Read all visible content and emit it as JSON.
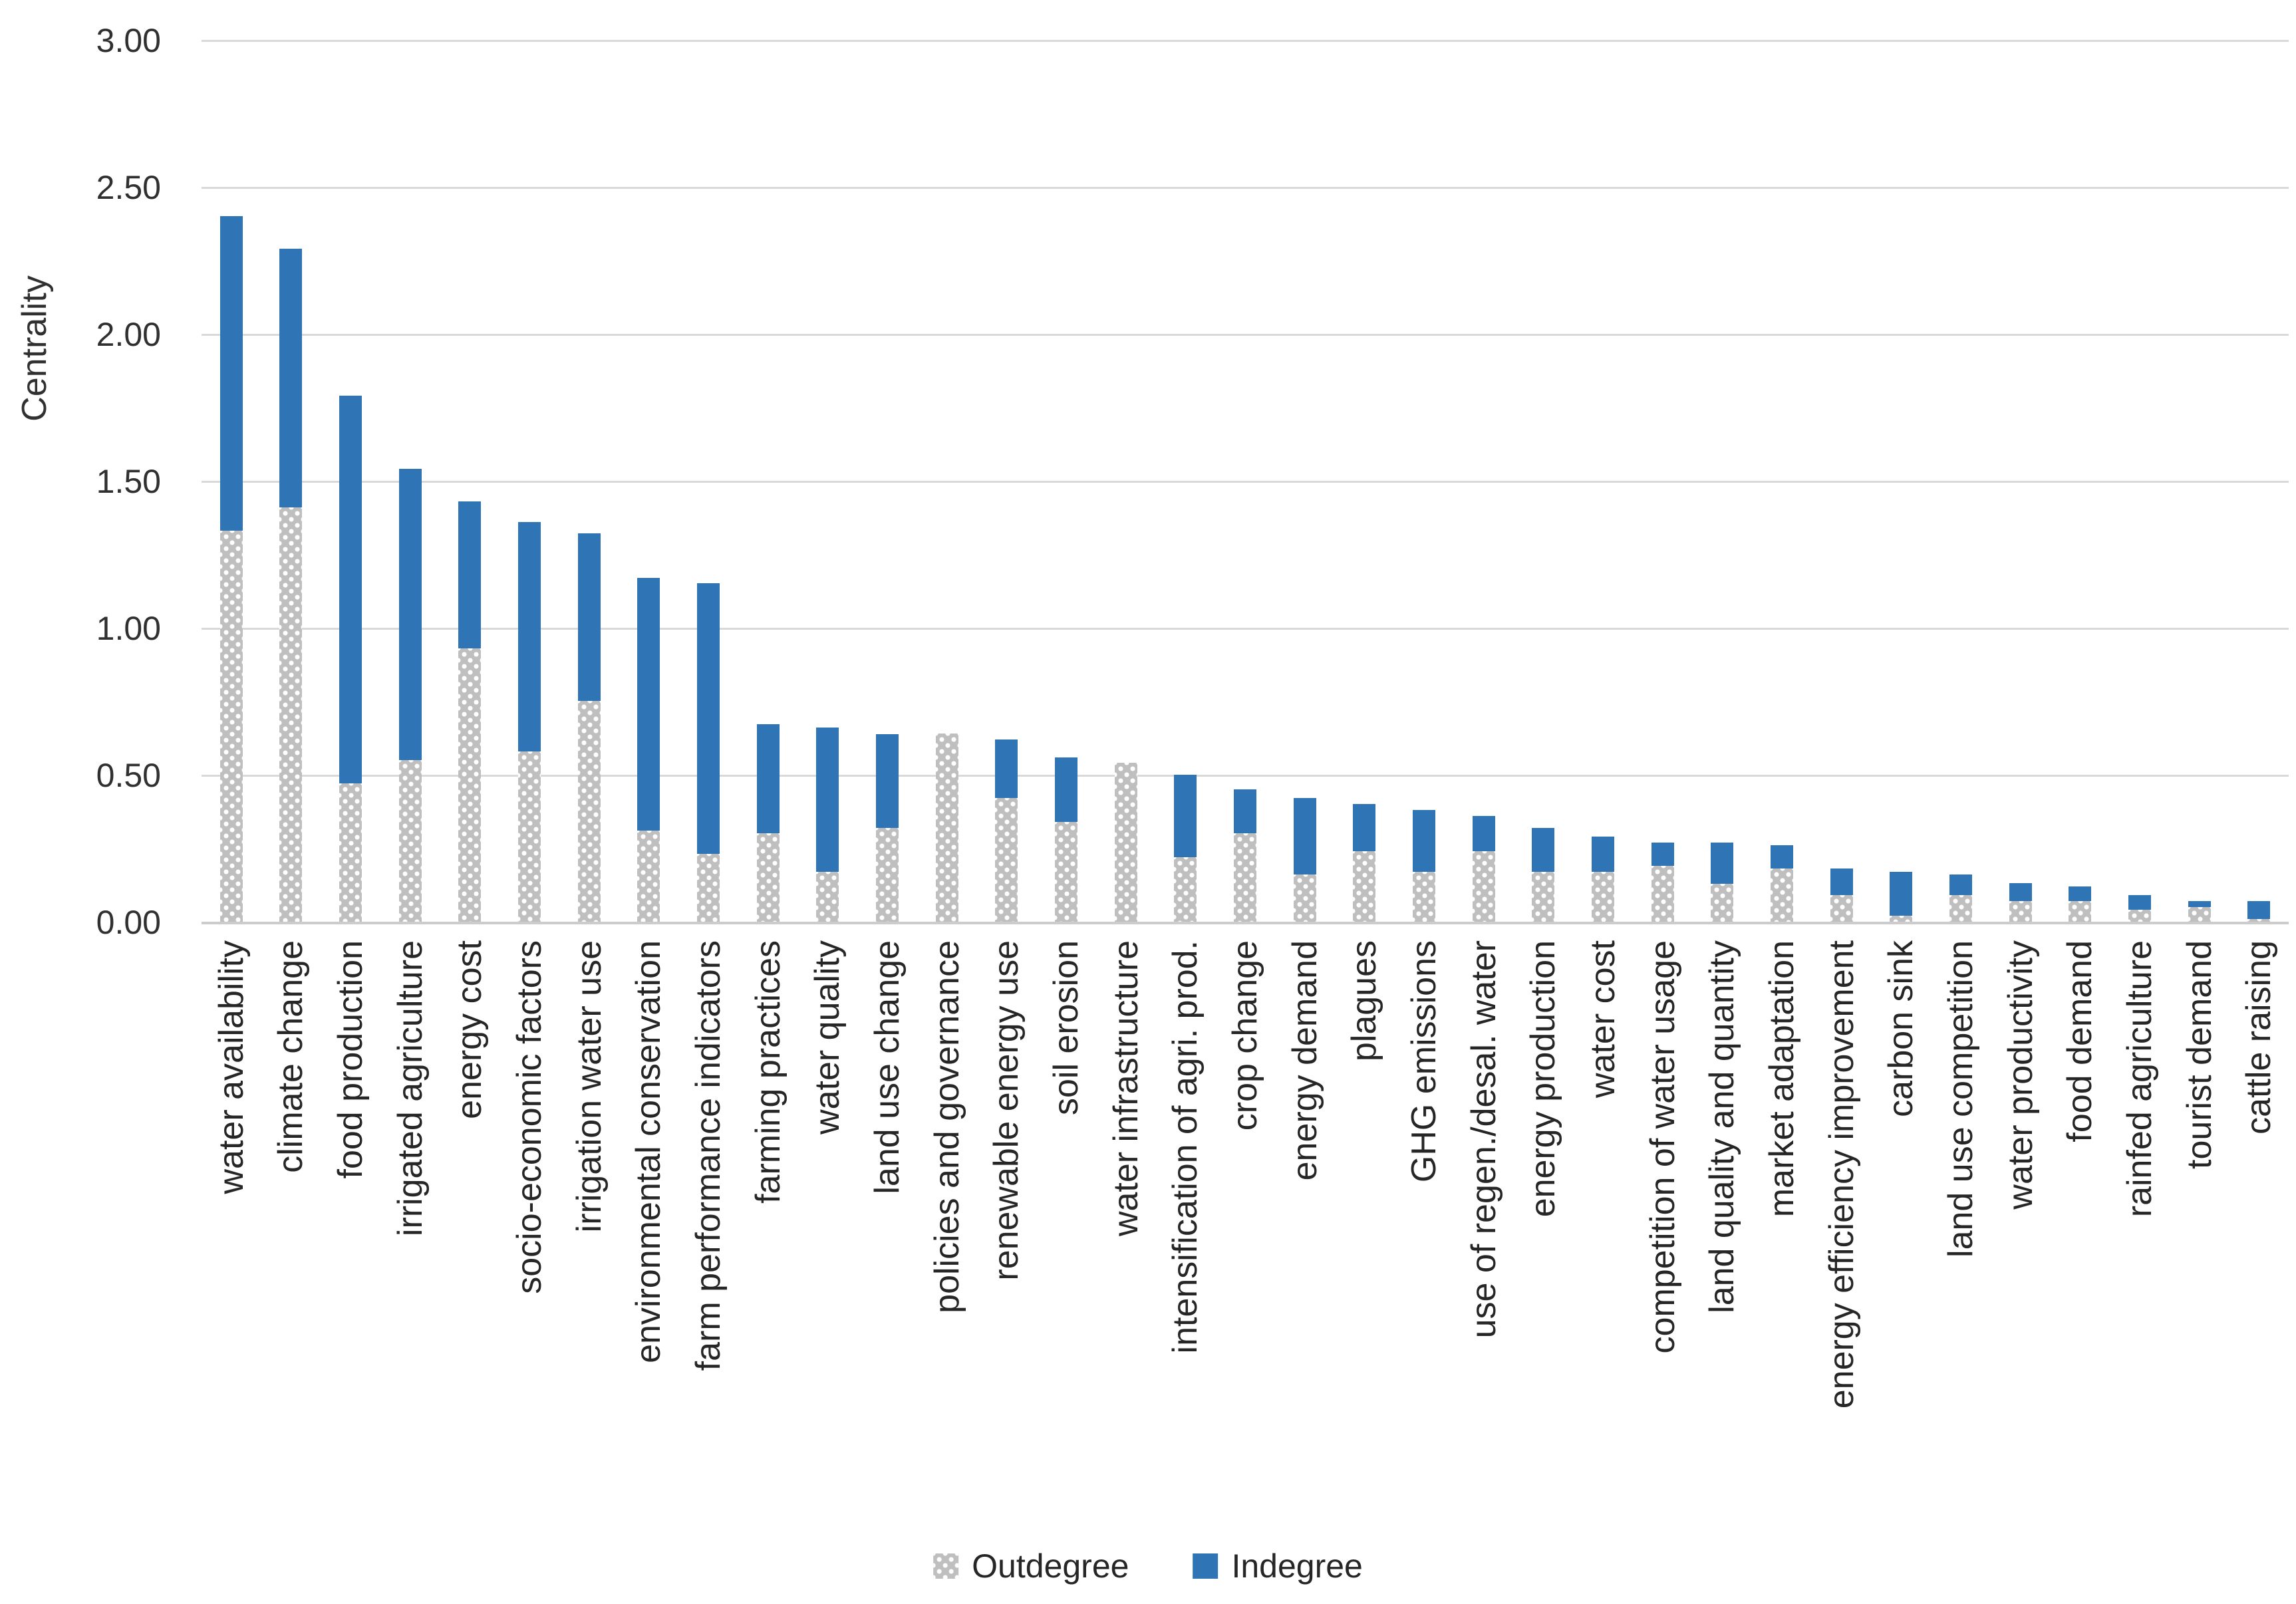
{
  "chart_data": {
    "type": "bar",
    "stacked": true,
    "title": "",
    "xlabel": "",
    "ylabel": "Centrality",
    "ylim": [
      0,
      3
    ],
    "ytick_step": 0.5,
    "y_tick_labels": [
      "0.00",
      "0.50",
      "1.00",
      "1.50",
      "2.00",
      "2.50",
      "3.00"
    ],
    "grid": "horizontal",
    "legend_position": "bottom",
    "categories": [
      "water availability",
      "climate change",
      "food production",
      "irrigated agriculture",
      "energy cost",
      "socio-economic factors",
      "irrigation water use",
      "environmental conservation",
      "farm performance indicators",
      "farming practices",
      "water quality",
      "land use change",
      "policies and governance",
      "renewable energy use",
      "soil erosion",
      "water infrastructure",
      "intensification of agri. prod.",
      "crop change",
      "energy demand",
      "plagues",
      "GHG emissions",
      "use of regen./desal. water",
      "energy production",
      "water cost",
      "competition of water usage",
      "land quality and quantity",
      "market adaptation",
      "energy efficiency improvement",
      "carbon sink",
      "land use competition",
      "water productivity",
      "food demand",
      "rainfed agriculture",
      "tourist demand",
      "cattle raising"
    ],
    "series": [
      {
        "name": "Outdegree",
        "color": "#bfbfbf",
        "pattern": "white-dots",
        "values": [
          1.33,
          1.41,
          0.47,
          0.55,
          0.93,
          0.58,
          0.75,
          0.31,
          0.23,
          0.3,
          0.17,
          0.32,
          0.64,
          0.42,
          0.34,
          0.54,
          0.22,
          0.3,
          0.16,
          0.24,
          0.17,
          0.24,
          0.17,
          0.17,
          0.19,
          0.13,
          0.18,
          0.09,
          0.02,
          0.09,
          0.07,
          0.07,
          0.04,
          0.05,
          0.01
        ]
      },
      {
        "name": "Indegree",
        "color": "#2f74b5",
        "pattern": "solid",
        "values": [
          1.07,
          0.88,
          1.32,
          0.99,
          0.5,
          0.78,
          0.57,
          0.86,
          0.92,
          0.37,
          0.49,
          0.32,
          0.0,
          0.2,
          0.22,
          0.0,
          0.28,
          0.15,
          0.26,
          0.16,
          0.21,
          0.12,
          0.15,
          0.12,
          0.08,
          0.14,
          0.08,
          0.09,
          0.15,
          0.07,
          0.06,
          0.05,
          0.05,
          0.02,
          0.06
        ]
      }
    ]
  },
  "colors": {
    "indegree": "#2f74b5",
    "outdegree": "#bfbfbf",
    "gridline": "#d9d9d9",
    "text": "#262626",
    "background": "#ffffff"
  },
  "legend": {
    "outdegree_label": "Outdegree",
    "indegree_label": "Indegree"
  }
}
